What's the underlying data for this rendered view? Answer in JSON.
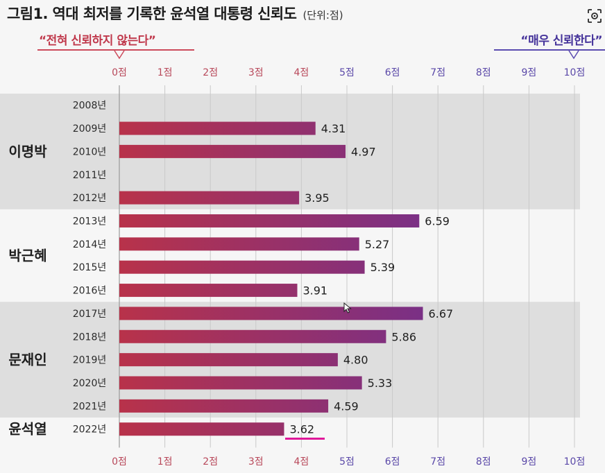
{
  "title": "그림1. 역대 최저를 기록한 윤석열 대통령 신뢰도",
  "unit": "(단위:점)",
  "scale_notes": {
    "left": "“전혀 신뢰하지 않는다”",
    "right": "“매우 신뢰한다”"
  },
  "icons": {
    "lens": "lens-search-icon",
    "cursor": "mouse-cursor-icon"
  },
  "colors": {
    "bar_start": "#b8324a",
    "bar_end": "#5b2fa3",
    "band": "#dedede",
    "left_note": "#c0394c",
    "right_note": "#45339a",
    "highlight": "#e0189a"
  },
  "chart_data": {
    "type": "bar",
    "orientation": "horizontal",
    "title": "그림1. 역대 최저를 기록한 윤석열 대통령 신뢰도",
    "xlim": [
      0,
      10
    ],
    "x_ticks": [
      "0점",
      "1점",
      "2점",
      "3점",
      "4점",
      "5점",
      "6점",
      "7점",
      "8점",
      "9점",
      "10점"
    ],
    "grid": true,
    "groups": [
      {
        "name": "이명박",
        "years": [
          "2008년",
          "2009년",
          "2010년",
          "2011년",
          "2012년"
        ],
        "values": [
          null,
          4.31,
          4.97,
          null,
          3.95
        ],
        "labels": [
          "",
          "4.31",
          "4.97",
          "",
          "3.95"
        ]
      },
      {
        "name": "박근혜",
        "years": [
          "2013년",
          "2014년",
          "2015년",
          "2016년"
        ],
        "values": [
          6.59,
          5.27,
          5.39,
          3.91
        ],
        "labels": [
          "6.59",
          "5.27",
          "5.39",
          "3.91"
        ]
      },
      {
        "name": "문재인",
        "years": [
          "2017년",
          "2018년",
          "2019년",
          "2020년",
          "2021년"
        ],
        "values": [
          6.67,
          5.86,
          4.8,
          5.33,
          4.59
        ],
        "labels": [
          "6.67",
          "5.86",
          "4.80",
          "5.33",
          "4.59"
        ]
      },
      {
        "name": "윤석열",
        "years": [
          "2022년"
        ],
        "values": [
          3.62
        ],
        "labels": [
          "3.62"
        ]
      }
    ]
  }
}
